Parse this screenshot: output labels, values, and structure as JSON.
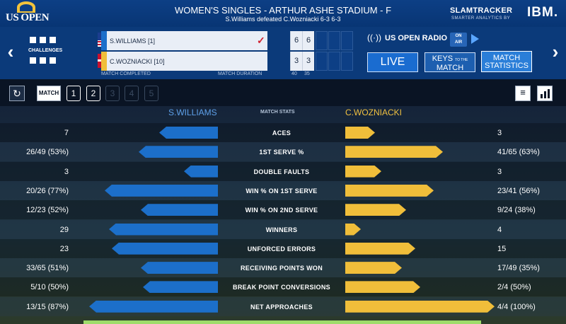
{
  "header": {
    "logo_text": "US OPEN",
    "title": "WOMEN'S SINGLES - ARTHUR ASHE STADIUM - F",
    "subtitle": "S.Williams defeated C.Wozniacki 6-3 6-3",
    "brand": "SLAMTRACKER",
    "brand_sub": "SMARTER ANALYTICS BY",
    "sponsor": "IBM."
  },
  "score": {
    "challenges_label": "CHALLENGES",
    "players": [
      {
        "name": "S.WILLIAMS [1]",
        "sets": [
          "6",
          "6"
        ],
        "flag": "usa-flag-icon",
        "winner": true,
        "color": "#1c6fca"
      },
      {
        "name": "C.WOZNIACKI [10]",
        "sets": [
          "3",
          "3"
        ],
        "flag": "denmark-flag-icon",
        "winner": false,
        "color": "#f0be3a"
      }
    ],
    "status": "MATCH COMPLETED",
    "duration_label": "MATCH DURATION",
    "duration_values": [
      "40",
      "35"
    ],
    "check_mark": "✓"
  },
  "controls": {
    "radio_label": "US OPEN RADIO",
    "on_air_1": "ON",
    "on_air_2": "AIR",
    "live": "LIVE",
    "keys_1": "KEYS",
    "keys_2": "MATCH",
    "keys_small": "TO THE",
    "stats_1": "MATCH",
    "stats_2": "STATISTICS"
  },
  "toolbar": {
    "match": "MATCH",
    "sets": [
      "1",
      "2",
      "3",
      "4",
      "5"
    ],
    "active_sets": 2
  },
  "stats": {
    "head_left": "S.WILLIAMS",
    "head_mid": "MATCH STATS",
    "head_right": "C.WOZNIACKI",
    "rows": [
      {
        "label": "ACES",
        "left": "7",
        "right": "3",
        "lfrac": 0.26,
        "rfrac": 0.13
      },
      {
        "label": "1ST SERVE %",
        "left": "26/49 (53%)",
        "right": "41/65 (63%)",
        "lfrac": 0.35,
        "rfrac": 0.43
      },
      {
        "label": "DOUBLE FAULTS",
        "left": "3",
        "right": "3",
        "lfrac": 0.15,
        "rfrac": 0.16
      },
      {
        "label": "WIN % ON 1ST SERVE",
        "left": "20/26 (77%)",
        "right": "23/41 (56%)",
        "lfrac": 0.5,
        "rfrac": 0.39
      },
      {
        "label": "WIN % ON 2ND SERVE",
        "left": "12/23 (52%)",
        "right": "9/24 (38%)",
        "lfrac": 0.34,
        "rfrac": 0.27
      },
      {
        "label": "WINNERS",
        "left": "29",
        "right": "4",
        "lfrac": 0.48,
        "rfrac": 0.07
      },
      {
        "label": "UNFORCED ERRORS",
        "left": "23",
        "right": "15",
        "lfrac": 0.47,
        "rfrac": 0.31
      },
      {
        "label": "RECEIVING POINTS WON",
        "left": "33/65 (51%)",
        "right": "17/49 (35%)",
        "lfrac": 0.34,
        "rfrac": 0.25
      },
      {
        "label": "BREAK POINT CONVERSIONS",
        "left": "5/10 (50%)",
        "right": "2/4 (50%)",
        "lfrac": 0.33,
        "rfrac": 0.33
      },
      {
        "label": "NET APPROACHES",
        "left": "13/15 (87%)",
        "right": "4/4 (100%)",
        "lfrac": 0.57,
        "rfrac": 0.66
      }
    ]
  }
}
